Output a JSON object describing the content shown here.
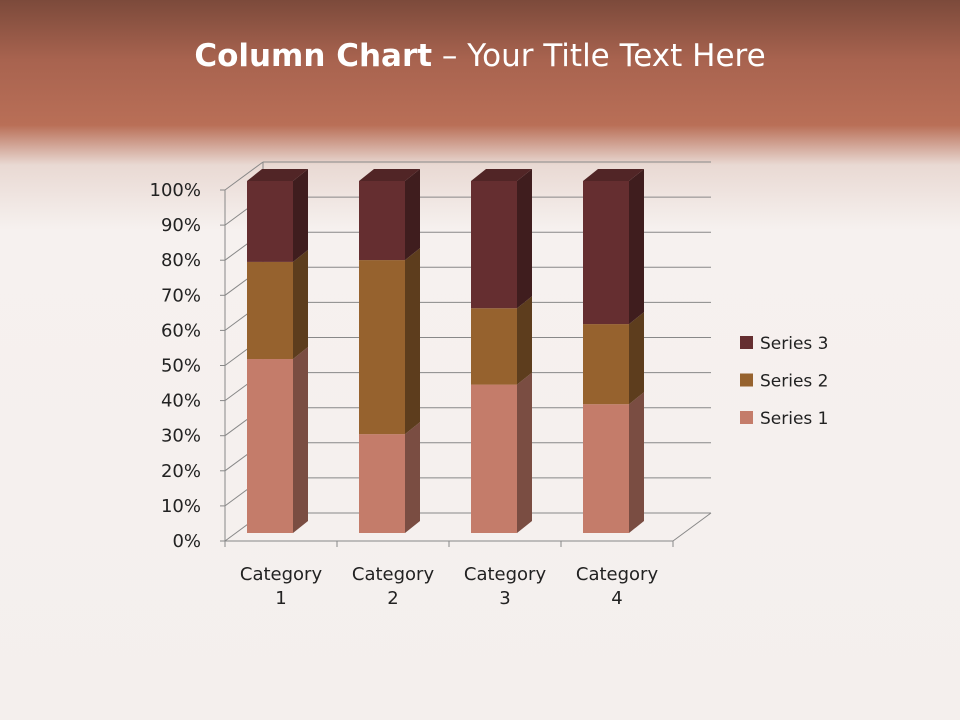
{
  "title": {
    "bold": "Column Chart",
    "rest": " – Your Title Text Here"
  },
  "chart_data": {
    "type": "bar",
    "stacking": "percent",
    "three_d": true,
    "categories": [
      "Category 1",
      "Category 2",
      "Category 3",
      "Category 4"
    ],
    "category_lines": [
      [
        "Category",
        "1"
      ],
      [
        "Category",
        "2"
      ],
      [
        "Category",
        "3"
      ],
      [
        "Category",
        "4"
      ]
    ],
    "series": [
      {
        "name": "Series 1",
        "values": [
          4.3,
          2.5,
          3.5,
          4.5
        ],
        "color": "#C47C6A"
      },
      {
        "name": "Series 2",
        "values": [
          2.4,
          4.4,
          1.8,
          2.8
        ],
        "color": "#96622E"
      },
      {
        "name": "Series 3",
        "values": [
          2,
          2,
          3,
          5
        ],
        "color": "#652E30"
      }
    ],
    "y_ticks": [
      "0%",
      "10%",
      "20%",
      "30%",
      "40%",
      "50%",
      "60%",
      "70%",
      "80%",
      "90%",
      "100%"
    ],
    "ylim": [
      0,
      100
    ],
    "grid": true,
    "legend": "right"
  }
}
